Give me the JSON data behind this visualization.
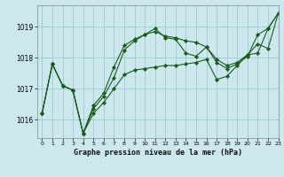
{
  "title": "Graphe pression niveau de la mer (hPa)",
  "bg_color": "#cce8ee",
  "grid_color": "#99cccc",
  "line_color": "#1a5c1a",
  "marker_color": "#1a5c1a",
  "xlim": [
    -0.5,
    23
  ],
  "ylim": [
    1015.4,
    1019.7
  ],
  "yticks": [
    1016,
    1017,
    1018,
    1019
  ],
  "xticks": [
    0,
    1,
    2,
    3,
    4,
    5,
    6,
    7,
    8,
    9,
    10,
    11,
    12,
    13,
    14,
    15,
    16,
    17,
    18,
    19,
    20,
    21,
    22,
    23
  ],
  "series": [
    [
      1016.2,
      1017.8,
      1017.1,
      1016.95,
      1015.55,
      1016.2,
      1016.55,
      1017.0,
      1017.45,
      1017.6,
      1017.65,
      1017.7,
      1017.75,
      1017.75,
      1017.8,
      1017.85,
      1017.95,
      1017.3,
      1017.4,
      1017.75,
      1018.1,
      1018.15,
      1018.95,
      1019.45
    ],
    [
      1016.2,
      1017.8,
      1017.1,
      1016.95,
      1015.55,
      1016.35,
      1016.75,
      1017.35,
      1018.25,
      1018.55,
      1018.75,
      1018.85,
      1018.7,
      1018.65,
      1018.55,
      1018.5,
      1018.35,
      1017.85,
      1017.65,
      1017.8,
      1018.05,
      1018.75,
      1018.95,
      1019.45
    ],
    [
      1016.2,
      1017.8,
      1017.1,
      1016.95,
      1015.55,
      1016.45,
      1016.85,
      1017.7,
      1018.4,
      1018.6,
      1018.75,
      1018.95,
      1018.65,
      1018.6,
      1018.15,
      1018.05,
      1018.35,
      1017.95,
      1017.75,
      1017.85,
      1018.1,
      1018.45,
      1018.3,
      1019.45
    ]
  ]
}
